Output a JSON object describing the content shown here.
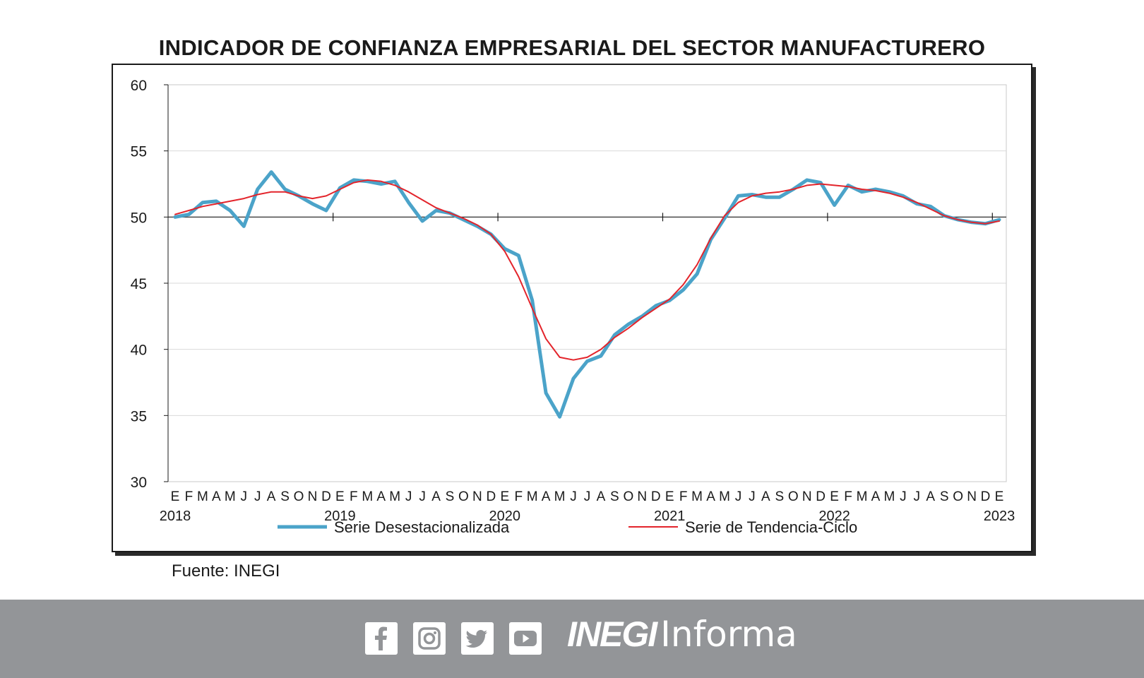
{
  "colors": {
    "series_seasonal": "#4ba3c9",
    "series_trend": "#e3242b",
    "footer_bg": "#939598",
    "axis": "#1a1a1a"
  },
  "footer": {
    "icons": [
      "facebook-icon",
      "instagram-icon",
      "twitter-icon",
      "youtube-icon"
    ],
    "brand_bold": "INEGI",
    "brand_light": "Informa"
  },
  "source_note": "Fuente: INEGI",
  "chart_data": {
    "type": "line",
    "title": "Indicador de Confianza Empresarial del sector manufacturero",
    "ylim": [
      30,
      60
    ],
    "yticks": [
      30,
      35,
      40,
      45,
      50,
      55,
      60
    ],
    "reference_line": 50,
    "grid": true,
    "legend_position": "bottom",
    "month_labels": [
      "E",
      "F",
      "M",
      "A",
      "M",
      "J",
      "J",
      "A",
      "S",
      "O",
      "N",
      "D",
      "E",
      "F",
      "M",
      "A",
      "M",
      "J",
      "J",
      "A",
      "S",
      "O",
      "N",
      "D",
      "E",
      "F",
      "M",
      "A",
      "M",
      "J",
      "J",
      "A",
      "S",
      "O",
      "N",
      "D",
      "E",
      "F",
      "M",
      "A",
      "M",
      "J",
      "J",
      "A",
      "S",
      "O",
      "N",
      "D",
      "E",
      "F",
      "M",
      "A",
      "M",
      "J",
      "J",
      "A",
      "S",
      "O",
      "N",
      "D",
      "E"
    ],
    "year_labels": [
      {
        "index": 0,
        "label": "2018"
      },
      {
        "index": 12,
        "label": "2019"
      },
      {
        "index": 24,
        "label": "2020"
      },
      {
        "index": 36,
        "label": "2021"
      },
      {
        "index": 48,
        "label": "2022"
      },
      {
        "index": 60,
        "label": "2023"
      }
    ],
    "series": [
      {
        "name": "Serie Desestacionalizada",
        "values": [
          50.0,
          50.2,
          51.1,
          51.2,
          50.5,
          49.3,
          52.1,
          53.4,
          52.1,
          51.6,
          51.0,
          50.5,
          52.2,
          52.8,
          52.7,
          52.5,
          52.7,
          51.1,
          49.7,
          50.5,
          50.3,
          49.8,
          49.3,
          48.7,
          47.6,
          47.1,
          43.7,
          36.7,
          34.9,
          37.8,
          39.1,
          39.5,
          41.1,
          41.9,
          42.5,
          43.3,
          43.7,
          44.5,
          45.7,
          48.3,
          49.9,
          51.6,
          51.7,
          51.5,
          51.5,
          52.1,
          52.8,
          52.6,
          50.9,
          52.4,
          51.9,
          52.1,
          51.9,
          51.6,
          51.0,
          50.8,
          50.1,
          49.8,
          49.6,
          49.5,
          49.8
        ]
      },
      {
        "name": "Serie de Tendencia-Ciclo",
        "values": [
          50.2,
          50.5,
          50.8,
          51.0,
          51.2,
          51.4,
          51.7,
          51.9,
          51.9,
          51.6,
          51.4,
          51.6,
          52.1,
          52.6,
          52.8,
          52.7,
          52.4,
          51.9,
          51.3,
          50.7,
          50.3,
          49.9,
          49.4,
          48.7,
          47.4,
          45.5,
          43.1,
          40.8,
          39.4,
          39.2,
          39.4,
          40.0,
          40.9,
          41.6,
          42.4,
          43.1,
          43.8,
          44.9,
          46.4,
          48.4,
          50.1,
          51.1,
          51.6,
          51.8,
          51.9,
          52.1,
          52.4,
          52.5,
          52.4,
          52.3,
          52.1,
          52.0,
          51.8,
          51.5,
          51.1,
          50.6,
          50.1,
          49.8,
          49.6,
          49.5,
          49.7
        ]
      }
    ]
  }
}
